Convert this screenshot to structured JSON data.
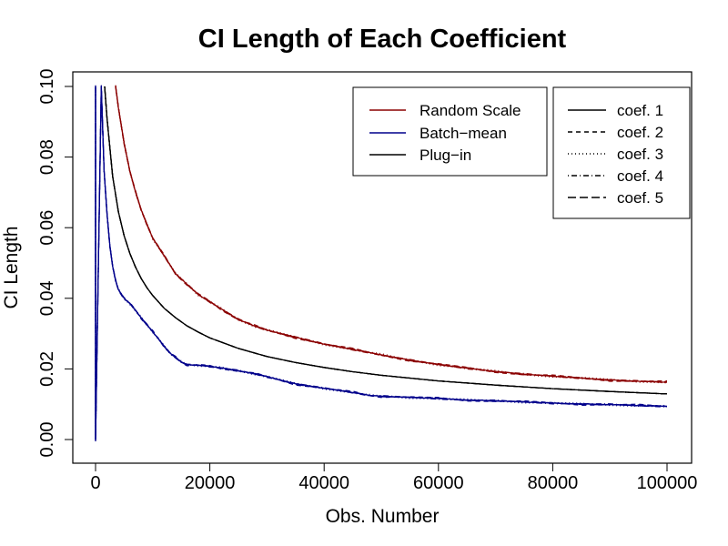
{
  "chart_data": {
    "type": "line",
    "title": "CI Length of Each Coefficient",
    "xlabel": "Obs. Number",
    "ylabel": "CI Length",
    "xlim": [
      0,
      100000
    ],
    "ylim": [
      0,
      0.1
    ],
    "x_ticks": [
      0,
      20000,
      40000,
      60000,
      80000,
      100000
    ],
    "x_tick_labels": [
      "0",
      "20000",
      "40000",
      "60000",
      "80000",
      "100000"
    ],
    "y_ticks": [
      0,
      0.02,
      0.04,
      0.06,
      0.08,
      0.1
    ],
    "y_tick_labels": [
      "0.00",
      "0.02",
      "0.04",
      "0.06",
      "0.08",
      "0.10"
    ],
    "grid": false,
    "legend_methods": {
      "placement": "top-center",
      "entries": [
        {
          "label": "Random Scale",
          "color": "#8b0000"
        },
        {
          "label": "Batch−mean",
          "color": "#00008b"
        },
        {
          "label": "Plug−in",
          "color": "#000000"
        }
      ]
    },
    "legend_coefs": {
      "placement": "top-right",
      "entries": [
        {
          "label": "coef. 1",
          "dash": "solid"
        },
        {
          "label": "coef. 2",
          "dash": "dashed"
        },
        {
          "label": "coef. 3",
          "dash": "dotted"
        },
        {
          "label": "coef. 4",
          "dash": "dotdash"
        },
        {
          "label": "coef. 5",
          "dash": "longdash"
        }
      ]
    },
    "series": [
      {
        "method": "Random Scale",
        "color": "#8b0000",
        "x": [
          3500,
          4000,
          5000,
          6000,
          7000,
          8000,
          9000,
          10000,
          12000,
          14000,
          16000,
          18000,
          20000,
          22000,
          25000,
          28000,
          30000,
          35000,
          40000,
          45000,
          50000,
          55000,
          60000,
          65000,
          70000,
          75000,
          80000,
          85000,
          90000,
          95000,
          100000
        ],
        "y": [
          0.1,
          0.094,
          0.084,
          0.076,
          0.07,
          0.065,
          0.061,
          0.057,
          0.052,
          0.047,
          0.044,
          0.041,
          0.039,
          0.037,
          0.034,
          0.032,
          0.031,
          0.029,
          0.027,
          0.0255,
          0.024,
          0.0225,
          0.0212,
          0.0202,
          0.0193,
          0.0185,
          0.0179,
          0.0174,
          0.0169,
          0.0165,
          0.0162
        ]
      },
      {
        "method": "Plug−in",
        "color": "#000000",
        "x": [
          1600,
          2000,
          3000,
          4000,
          5000,
          6000,
          7000,
          8000,
          9000,
          10000,
          12000,
          14000,
          16000,
          18000,
          20000,
          25000,
          30000,
          35000,
          40000,
          45000,
          50000,
          60000,
          70000,
          80000,
          90000,
          100000
        ],
        "y": [
          0.1,
          0.091,
          0.0745,
          0.0645,
          0.0577,
          0.0527,
          0.0488,
          0.0456,
          0.043,
          0.0408,
          0.0372,
          0.0345,
          0.0322,
          0.0304,
          0.0288,
          0.0258,
          0.0235,
          0.0218,
          0.0204,
          0.0192,
          0.0182,
          0.0166,
          0.0154,
          0.0144,
          0.0136,
          0.0129
        ]
      },
      {
        "method": "Batch−mean",
        "color": "#00008b",
        "x": [
          0,
          0,
          0,
          1000,
          1500,
          2000,
          2500,
          3000,
          3500,
          4000,
          5000,
          6000,
          7000,
          8000,
          9000,
          10000,
          11000,
          12000,
          13000,
          14000,
          15000,
          16000,
          18000,
          20000,
          22000,
          25000,
          28000,
          30000,
          35000,
          40000,
          45000,
          48000,
          50000,
          55000,
          60000,
          65000,
          70000,
          75000,
          80000,
          85000,
          90000,
          95000,
          100000
        ],
        "y": [
          0,
          0.1,
          0,
          0.1,
          0.076,
          0.064,
          0.055,
          0.049,
          0.045,
          0.0425,
          0.04,
          0.0385,
          0.0365,
          0.0345,
          0.0325,
          0.0305,
          0.0285,
          0.0265,
          0.0245,
          0.0232,
          0.022,
          0.0212,
          0.021,
          0.0207,
          0.0203,
          0.0195,
          0.0185,
          0.0178,
          0.0158,
          0.0145,
          0.0133,
          0.0125,
          0.0123,
          0.0119,
          0.0116,
          0.0112,
          0.011,
          0.0106,
          0.0103,
          0.0101,
          0.0099,
          0.0096,
          0.0094
        ]
      }
    ]
  }
}
